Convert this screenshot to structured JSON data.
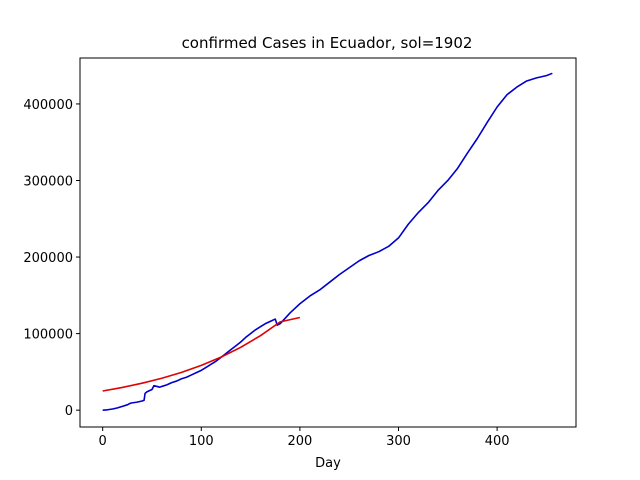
{
  "chart_data": {
    "type": "line",
    "title": "confirmed Cases in Ecuador, sol=1902",
    "xlabel": "Day",
    "ylabel": "",
    "xlim": [
      -23,
      480
    ],
    "ylim": [
      -22000,
      460000
    ],
    "xticks": [
      0,
      100,
      200,
      300,
      400
    ],
    "yticks": [
      0,
      100000,
      200000,
      300000,
      400000
    ],
    "grid": false,
    "series": [
      {
        "color": "#0000cc",
        "x": [
          0,
          5,
          10,
          15,
          20,
          25,
          28,
          30,
          35,
          40,
          42,
          43,
          45,
          50,
          52,
          55,
          58,
          60,
          65,
          70,
          75,
          80,
          85,
          90,
          95,
          100,
          105,
          110,
          115,
          120,
          125,
          130,
          135,
          140,
          145,
          150,
          155,
          160,
          165,
          170,
          175,
          177,
          180,
          185,
          190,
          195,
          200,
          210,
          220,
          230,
          240,
          250,
          260,
          270,
          280,
          290,
          300,
          310,
          320,
          330,
          340,
          350,
          360,
          370,
          380,
          390,
          400,
          410,
          420,
          430,
          440,
          450,
          456
        ],
        "y": [
          0,
          500,
          1500,
          3000,
          5000,
          7000,
          9000,
          9500,
          10500,
          12000,
          13000,
          22000,
          24000,
          27000,
          32000,
          31000,
          30000,
          31000,
          33000,
          36000,
          38000,
          41000,
          43000,
          46000,
          49000,
          52000,
          56000,
          60000,
          64000,
          69000,
          74000,
          79000,
          84000,
          89000,
          95000,
          100000,
          105000,
          109000,
          113000,
          116000,
          119000,
          111000,
          113000,
          120000,
          127000,
          133000,
          139000,
          149000,
          157000,
          167000,
          177000,
          186000,
          195000,
          202000,
          207000,
          214000,
          225000,
          243000,
          258000,
          271000,
          287000,
          300000,
          316000,
          336000,
          355000,
          376000,
          396000,
          412000,
          422000,
          430000,
          434000,
          437000,
          440000
        ]
      },
      {
        "color": "#e00000",
        "x": [
          0,
          20,
          40,
          60,
          80,
          100,
          120,
          140,
          160,
          180,
          200
        ],
        "y": [
          25000,
          29700,
          35200,
          41700,
          49400,
          58500,
          69300,
          82100,
          97300,
          115300,
          121000
        ]
      }
    ]
  }
}
